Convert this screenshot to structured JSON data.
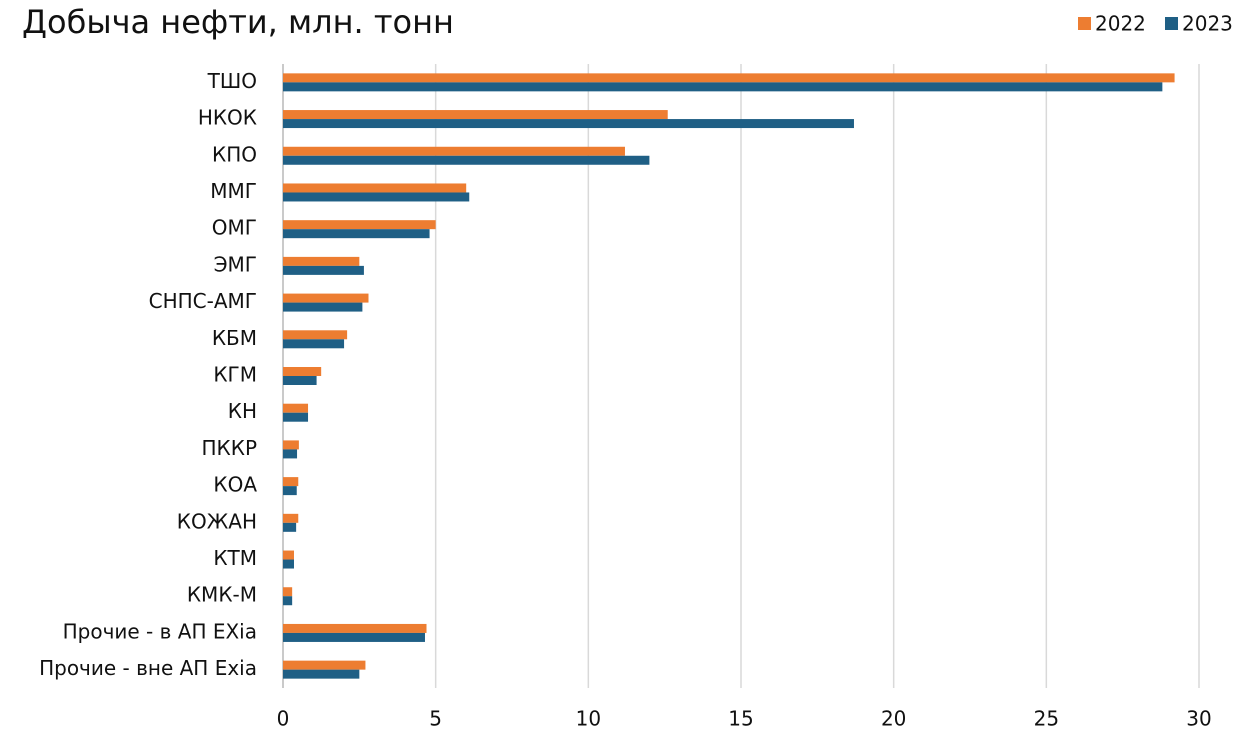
{
  "chart_data": {
    "type": "hbar",
    "title": "Добыча нефти, млн. тонн",
    "categories": [
      "ТШО",
      "НКОК",
      "КПО",
      "ММГ",
      "ОМГ",
      "ЭМГ",
      "СНПС-АМГ",
      "КБМ",
      "КГМ",
      "КН",
      "ПККР",
      "КОА",
      "КОЖАН",
      "КТМ",
      "КМК-М",
      "Прочие - в АП EXia",
      "Прочие - вне АП Exia"
    ],
    "series": [
      {
        "name": "2022",
        "color": "#ed7d31",
        "values": [
          29.2,
          12.6,
          11.2,
          6.0,
          5.0,
          2.5,
          2.8,
          2.1,
          1.25,
          0.82,
          0.52,
          0.5,
          0.5,
          0.36,
          0.3,
          4.7,
          2.7
        ]
      },
      {
        "name": "2023",
        "color": "#1f5f85",
        "values": [
          28.8,
          18.7,
          12.0,
          6.1,
          4.8,
          2.65,
          2.6,
          2.0,
          1.1,
          0.82,
          0.46,
          0.45,
          0.43,
          0.36,
          0.3,
          4.65,
          2.5
        ]
      }
    ],
    "xlim": [
      0,
      30
    ],
    "xticks": [
      0,
      5,
      10,
      15,
      20,
      25,
      30
    ],
    "grid": true,
    "legend": "top-right"
  }
}
